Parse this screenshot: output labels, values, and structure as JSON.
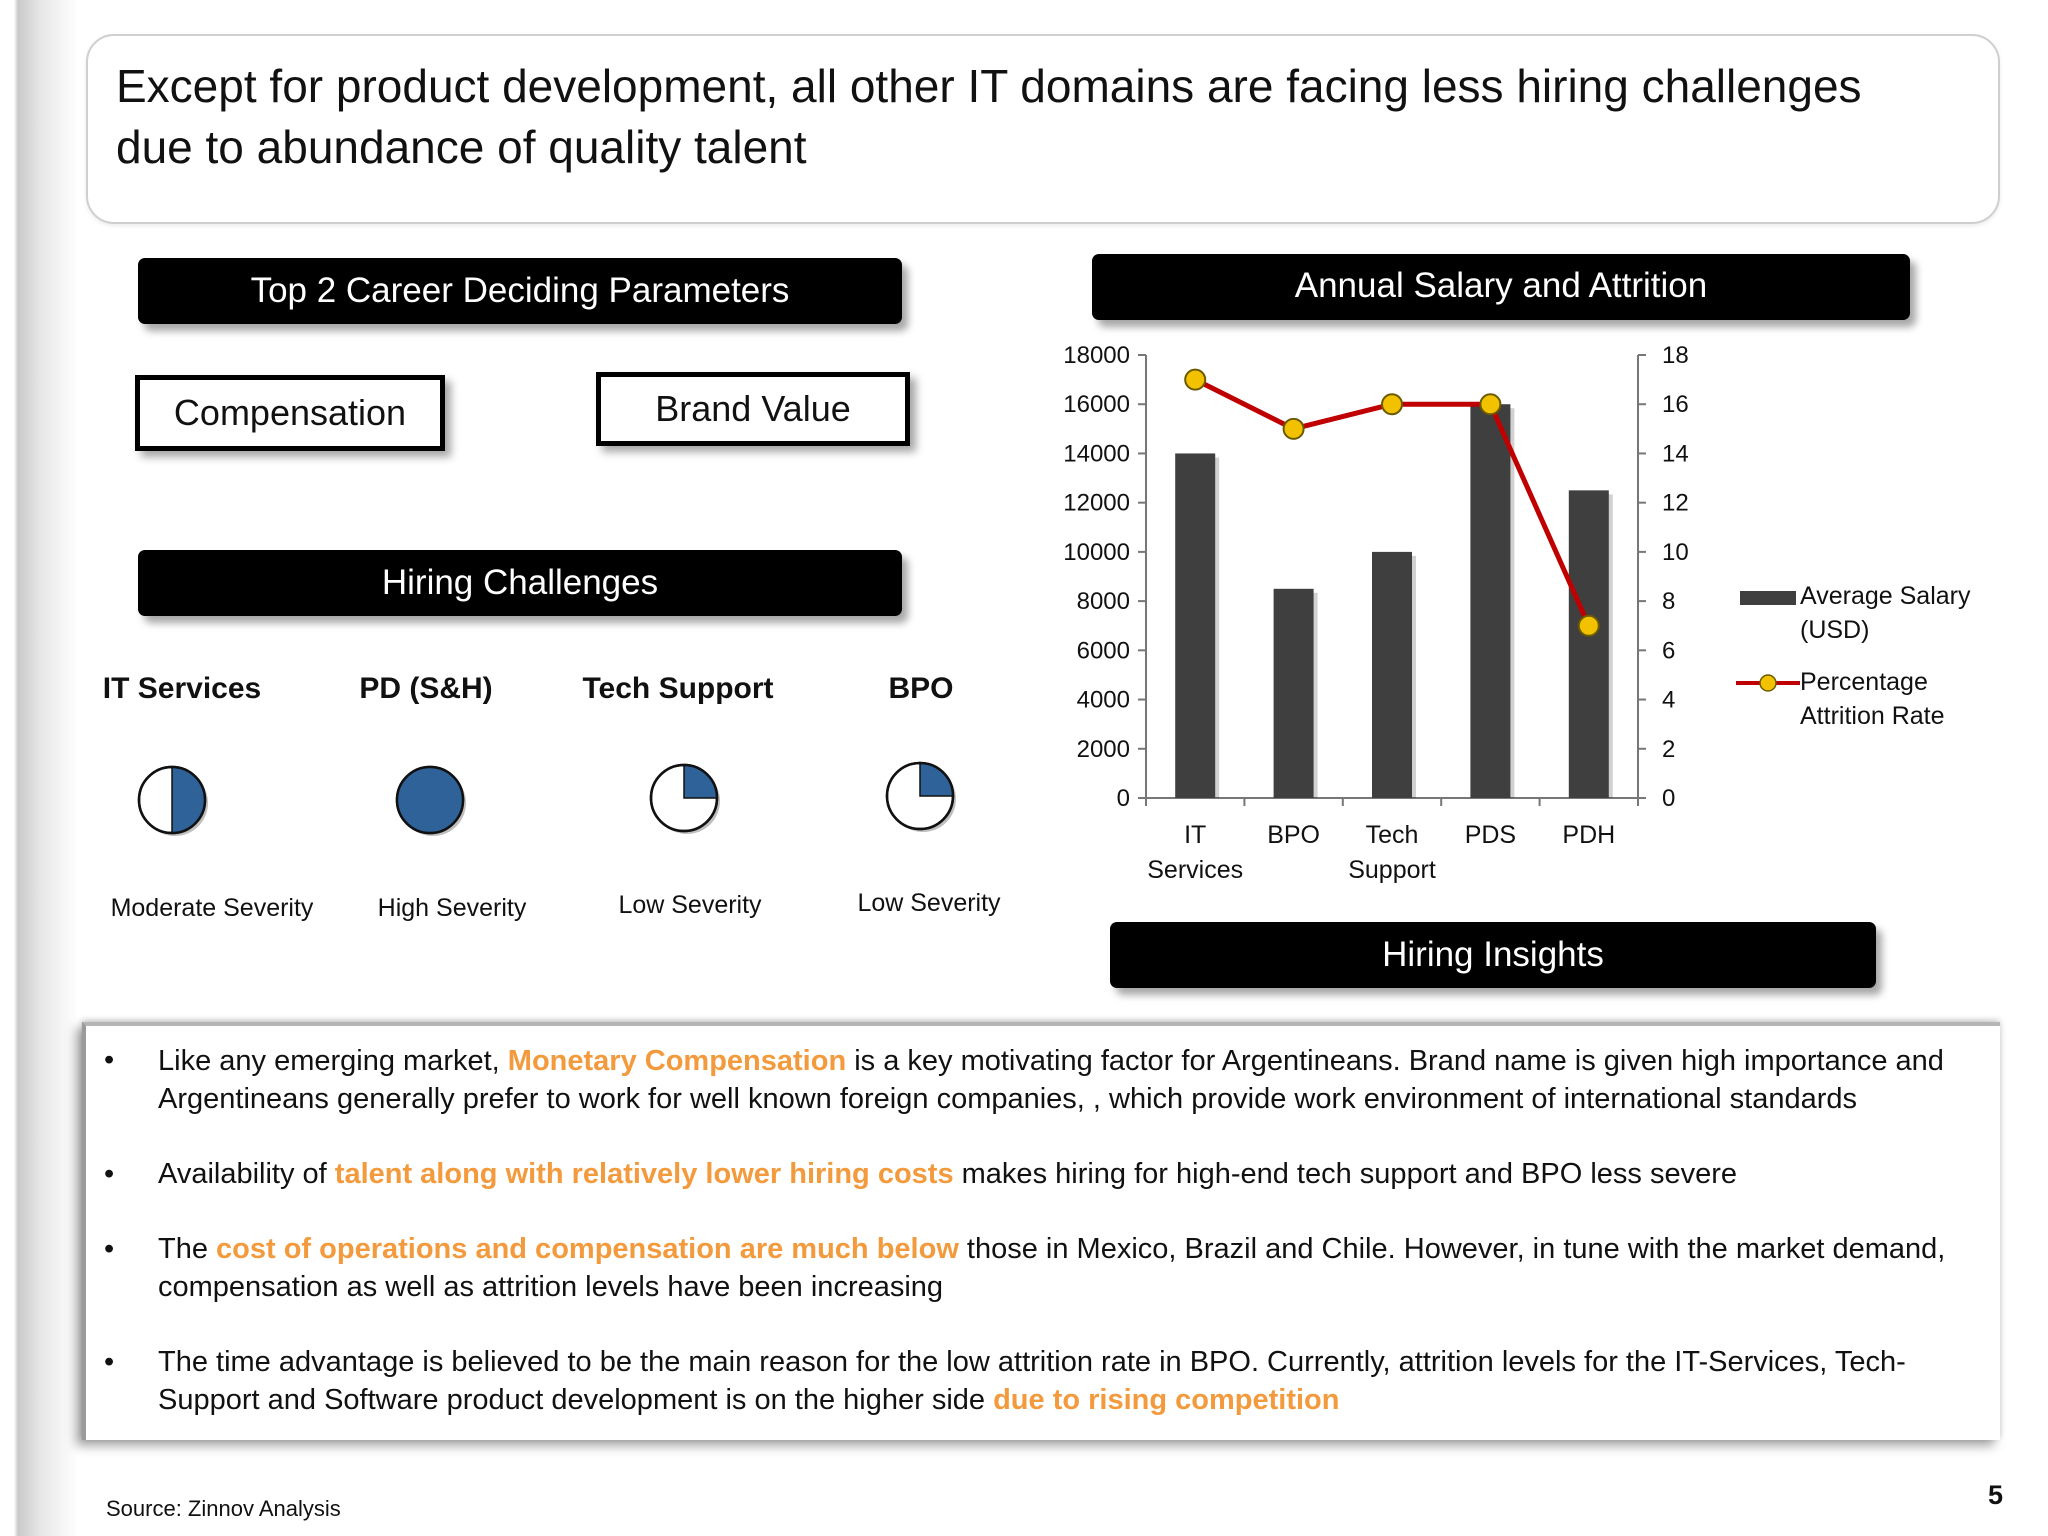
{
  "slide": {
    "title_line1": "Except for product development, all other IT domains are facing less hiring challenges",
    "title_line2": "due to abundance of quality talent",
    "page_number": "5",
    "source": "Source: Zinnov Analysis"
  },
  "career": {
    "header": "Top 2 Career Deciding Parameters",
    "param1": "Compensation",
    "param2": "Brand Value"
  },
  "hiring": {
    "header": "Hiring Challenges",
    "items": [
      {
        "name": "IT Services",
        "severity": "Moderate Severity",
        "fill_fraction": 0.5
      },
      {
        "name": "PD (S&H)",
        "severity": "High Severity",
        "fill_fraction": 1.0
      },
      {
        "name": "Tech Support",
        "severity": "Low Severity",
        "fill_fraction": 0.25
      },
      {
        "name": "BPO",
        "severity": "Low Severity",
        "fill_fraction": 0.25
      }
    ],
    "fill_color": "#2f6299"
  },
  "salary_chart": {
    "header": "Annual Salary and Attrition"
  },
  "chart_data": {
    "type": "bar",
    "categories": [
      "IT Services",
      "BPO",
      "Tech Support",
      "PDS",
      "PDH"
    ],
    "category_lines": [
      [
        "IT",
        "Services"
      ],
      [
        "BPO"
      ],
      [
        "Tech",
        "Support"
      ],
      [
        "PDS"
      ],
      [
        "PDH"
      ]
    ],
    "series": [
      {
        "name": "Average Salary (USD)",
        "type": "bar",
        "axis": "left",
        "values": [
          14000,
          8500,
          10000,
          16000,
          12500
        ],
        "color": "#3f3f3f"
      },
      {
        "name": "Percentage Attrition Rate",
        "type": "line",
        "axis": "right",
        "values": [
          17,
          15,
          16,
          16,
          7
        ],
        "color": "#c00000",
        "marker_color": "#f2c200"
      }
    ],
    "y_left": {
      "min": 0,
      "max": 18000,
      "ticks": [
        "0",
        "2000",
        "4000",
        "6000",
        "8000",
        "10000",
        "12000",
        "14000",
        "16000",
        "18000"
      ]
    },
    "y_right": {
      "min": 0,
      "max": 18,
      "ticks": [
        "0",
        "2",
        "4",
        "6",
        "8",
        "10",
        "12",
        "14",
        "16",
        "18"
      ]
    },
    "legend": {
      "placement": "right",
      "salary_line1": "Average Salary",
      "salary_line2": "(USD)",
      "attrition_line1": "Percentage",
      "attrition_line2": "Attrition Rate"
    },
    "grid": false
  },
  "insights": {
    "header": "Hiring Insights",
    "b1_pre": "Like any emerging market, ",
    "b1_hl": "Monetary Compensation",
    "b1_mid": " is a key  motivating factor for Argentineans. Brand name is given high importance and",
    "b1_line2": "Argentineans generally prefer to work for  well known foreign companies, , which provide work environment of international standards",
    "b2_pre": "Availability of ",
    "b2_hl": "talent along with relatively lower hiring costs",
    "b2_post": " makes hiring for high-end tech support and BPO less severe",
    "b3_pre": "The ",
    "b3_hl": "cost of operations and compensation are much below",
    "b3_post": " those in Mexico, Brazil and Chile. However, in tune with the market demand,",
    "b3_line2": "compensation as well as attrition levels have been increasing",
    "b4_line1": "The time advantage is believed to be the main reason for the low attrition rate in BPO. Currently, attrition levels for the IT-Services, Tech-",
    "b4_pre": "Support and Software product development is on the higher side ",
    "b4_hl": "due to rising competition",
    "bullet": "•",
    "highlight_color": "#f39a3d"
  }
}
